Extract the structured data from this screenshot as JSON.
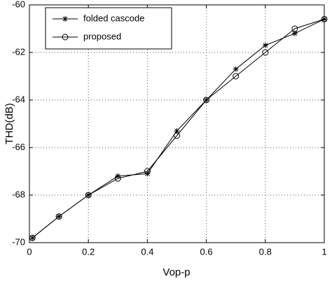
{
  "chart_data": {
    "type": "line",
    "xlabel": "Vop-p",
    "ylabel": "THD(dB)",
    "x": [
      0.01,
      0.1,
      0.2,
      0.3,
      0.4,
      0.5,
      0.6,
      0.7,
      0.8,
      0.9,
      1.0
    ],
    "series": [
      {
        "name": "folded cascode",
        "color": "#000000",
        "marker": "star",
        "values": [
          -69.8,
          -68.9,
          -68,
          -67.2,
          -67.1,
          -65.3,
          -64,
          -62.7,
          -61.7,
          -61.2,
          -60.6
        ]
      },
      {
        "name": "proposed",
        "color": "#000000",
        "marker": "circle",
        "values": [
          -69.8,
          -68.9,
          -68,
          -67.3,
          -67,
          -65.5,
          -64,
          -63,
          -62,
          -61,
          -60.6
        ]
      }
    ],
    "xlim": [
      0,
      1
    ],
    "xticks": [
      0,
      0.2,
      0.4,
      0.6,
      0.8,
      1
    ],
    "ylim": [
      -70,
      -60
    ],
    "yticks": [
      -70,
      -68,
      -66,
      -64,
      -62,
      -60
    ],
    "grid": true,
    "legend": "upper left"
  }
}
